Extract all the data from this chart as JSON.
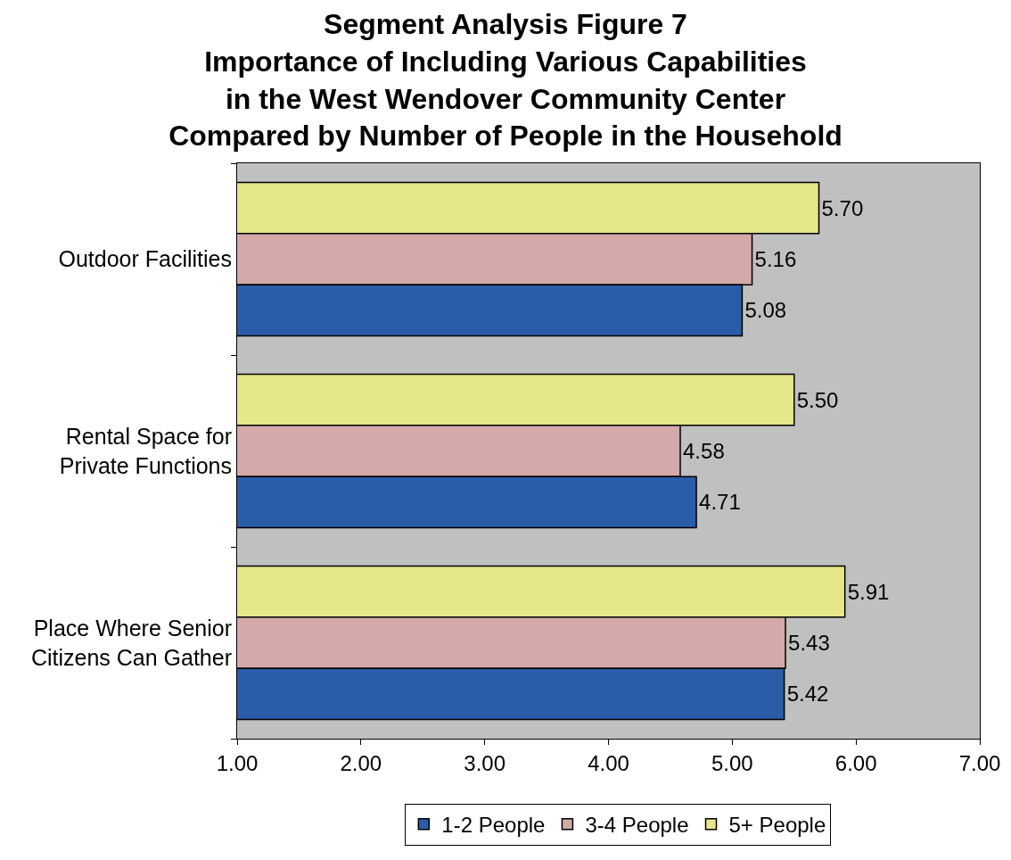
{
  "chart_data": {
    "type": "bar",
    "orientation": "horizontal",
    "title": "Segment Analysis Figure 7\nImportance of Including Various Capabilities\nin the West Wendover Community Center\nCompared by Number of People in the Household",
    "categories": [
      "Outdoor Facilities",
      "Rental Space for Private Functions",
      "Place Where Senior Citizens Can Gather"
    ],
    "series": [
      {
        "name": "1-2 People",
        "color": "#2a5ca8",
        "values": [
          5.08,
          4.71,
          5.42
        ],
        "value_labels": [
          "5.08",
          "4.71",
          "5.42"
        ]
      },
      {
        "name": "3-4 People",
        "color": "#d4a9a9",
        "values": [
          5.16,
          4.58,
          5.43
        ],
        "value_labels": [
          "5.16",
          "4.58",
          "5.43"
        ]
      },
      {
        "name": "5+ People",
        "color": "#e6e68a",
        "values": [
          5.7,
          5.5,
          5.91
        ],
        "value_labels": [
          "5.70",
          "5.50",
          "5.91"
        ]
      }
    ],
    "xlim": [
      1,
      7
    ],
    "xticks": [
      {
        "value": 1,
        "label": "1.00"
      },
      {
        "value": 2,
        "label": "2.00"
      },
      {
        "value": 3,
        "label": "3.00"
      },
      {
        "value": 4,
        "label": "4.00"
      },
      {
        "value": 5,
        "label": "5.00"
      },
      {
        "value": 6,
        "label": "6.00"
      },
      {
        "value": 7,
        "label": "7.00"
      }
    ],
    "legend": "bottom"
  }
}
